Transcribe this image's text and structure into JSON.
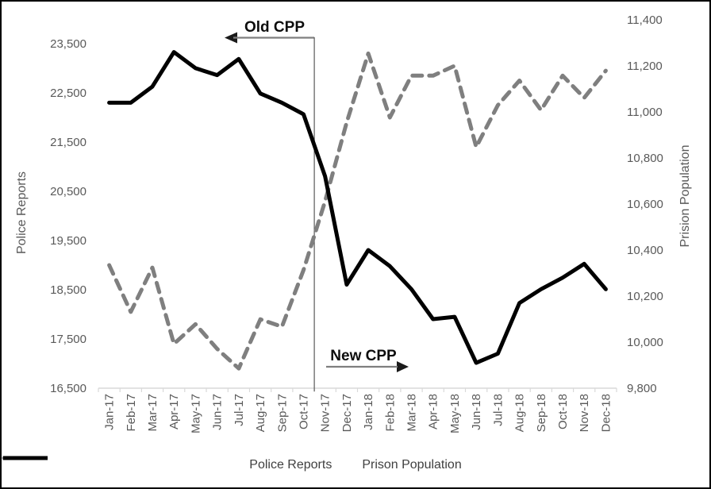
{
  "window": {
    "background": "#ffffff",
    "border_color": "#000000"
  },
  "chart_data": {
    "type": "line",
    "title": "",
    "grid": "off",
    "legend_position": "bottom",
    "categories": [
      "Jan-17",
      "Feb-17",
      "Mar-17",
      "Apr-17",
      "May-17",
      "Jun-17",
      "Jul-17",
      "Aug-17",
      "Sep-17",
      "Oct-17",
      "Nov-17",
      "Dec-17",
      "Jan-18",
      "Feb-18",
      "Mar-18",
      "Apr-18",
      "May-18",
      "Jun-18",
      "Jul-18",
      "Aug-18",
      "Sep-18",
      "Oct-18",
      "Nov-18",
      "Dec-18"
    ],
    "series": [
      {
        "name": "Police Reports",
        "axis": "left",
        "style": "dashed",
        "color": "#7f7f7f",
        "values": [
          19000,
          18050,
          18950,
          17400,
          17800,
          17300,
          16900,
          17900,
          17750,
          18900,
          20300,
          21900,
          23300,
          22000,
          22850,
          22850,
          23050,
          21400,
          22250,
          22750,
          22150,
          22850,
          22400,
          22950
        ]
      },
      {
        "name": "Prison Population",
        "axis": "right",
        "style": "solid",
        "color": "#000000",
        "values": [
          11040,
          11040,
          11110,
          11260,
          11190,
          11160,
          11230,
          11080,
          11040,
          10990,
          10720,
          10250,
          10400,
          10330,
          10230,
          10100,
          10110,
          9910,
          9950,
          10170,
          10230,
          10280,
          10340,
          10230
        ]
      }
    ],
    "left_axis": {
      "title": "Police Reports",
      "min": 16500,
      "max": 23500,
      "tick_step": 1000,
      "tick_labels": [
        "16,500",
        "17,500",
        "18,500",
        "19,500",
        "20,500",
        "21,500",
        "22,500",
        "23,500"
      ]
    },
    "right_axis": {
      "title": "Prision Population",
      "min": 9800,
      "max": 11400,
      "tick_step": 200,
      "tick_labels": [
        "9,800",
        "10,000",
        "10,200",
        "10,400",
        "10,600",
        "10,800",
        "11,000",
        "11,200",
        "11,400"
      ]
    },
    "annotations": [
      {
        "id": "old-cpp",
        "label": "Old CPP",
        "arrow_direction": "left"
      },
      {
        "id": "new-cpp",
        "label": "New CPP",
        "arrow_direction": "right"
      }
    ],
    "divider_between": [
      "Oct-17",
      "Nov-17"
    ],
    "colors": {
      "tick_label": "#595959",
      "axis_line": "#d9d9d9",
      "divider": "#595959",
      "arrow_line": "#7f7f7f",
      "arrow_head": "#1a1a1a"
    }
  }
}
